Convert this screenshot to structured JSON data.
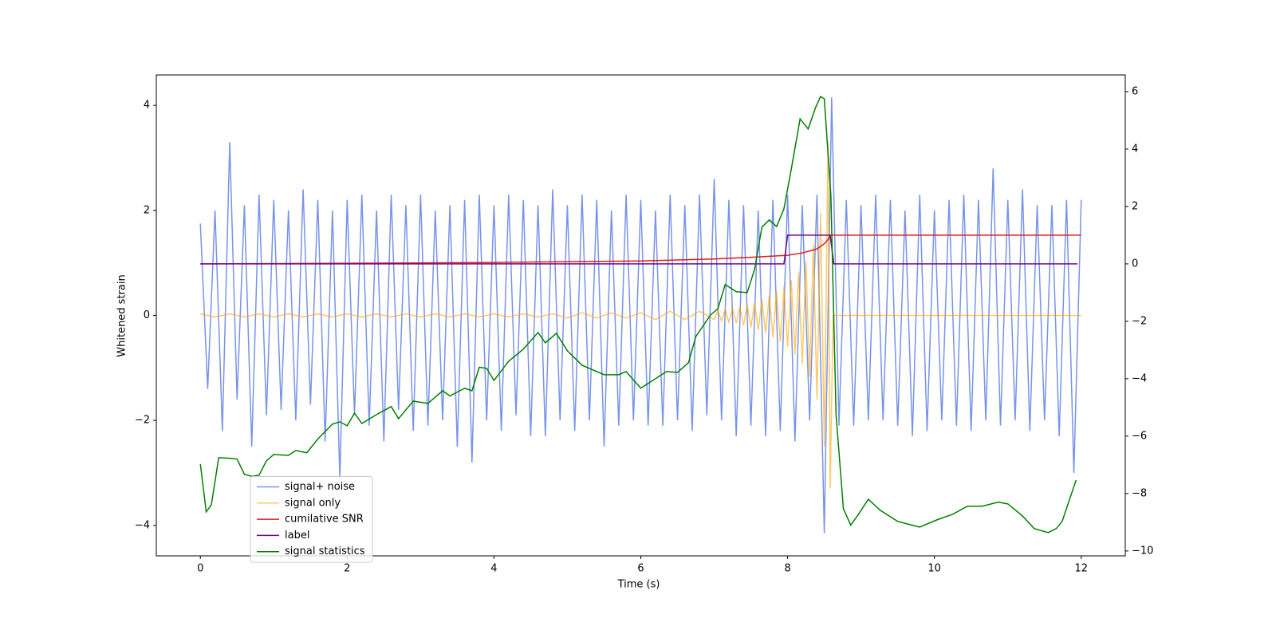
{
  "chart_data": {
    "type": "line",
    "xlabel": "Time (s)",
    "ylabel": "Whitened strain",
    "xlim": [
      -0.6,
      12.6
    ],
    "xticks": [
      0,
      2,
      4,
      6,
      8,
      10,
      12
    ],
    "ylim": [
      -4.58,
      4.58
    ],
    "yticks": [
      {
        "value": -4,
        "label": "−4"
      },
      {
        "value": -2,
        "label": "−2"
      },
      0,
      2,
      4
    ],
    "y2lim": [
      -10.17,
      6.58
    ],
    "y2ticks": [
      {
        "value": -10,
        "label": "−10"
      },
      {
        "value": -8,
        "label": "−8"
      },
      {
        "value": -6,
        "label": "−6"
      },
      {
        "value": -4,
        "label": "−4"
      },
      {
        "value": -2,
        "label": "−2"
      },
      0,
      2,
      4,
      6
    ],
    "legend": "lower left",
    "series": [
      {
        "name": "signal+ noise",
        "color": "#7893e8",
        "x": [
          0,
          0.1,
          0.2,
          0.3,
          0.4,
          0.5,
          0.6,
          0.7,
          0.8,
          0.9,
          1,
          1.1,
          1.2,
          1.3,
          1.4,
          1.5,
          1.6,
          1.7,
          1.8,
          1.9,
          2,
          2.1,
          2.2,
          2.3,
          2.4,
          2.5,
          2.6,
          2.7,
          2.8,
          2.9,
          3,
          3.1,
          3.2,
          3.3,
          3.4,
          3.5,
          3.6,
          3.7,
          3.8,
          3.9,
          4,
          4.1,
          4.2,
          4.3,
          4.4,
          4.5,
          4.6,
          4.7,
          4.8,
          4.9,
          5,
          5.1,
          5.2,
          5.3,
          5.4,
          5.5,
          5.6,
          5.7,
          5.8,
          5.9,
          6,
          6.1,
          6.2,
          6.3,
          6.4,
          6.5,
          6.6,
          6.7,
          6.8,
          6.9,
          7,
          7.1,
          7.2,
          7.3,
          7.4,
          7.5,
          7.6,
          7.7,
          7.8,
          7.9,
          8,
          8.1,
          8.2,
          8.3,
          8.4,
          8.5,
          8.6,
          8.7,
          8.8,
          8.9,
          9,
          9.1,
          9.2,
          9.3,
          9.4,
          9.5,
          9.6,
          9.7,
          9.8,
          9.9,
          10,
          10.1,
          10.2,
          10.3,
          10.4,
          10.5,
          10.6,
          10.7,
          10.8,
          10.9,
          11,
          11.1,
          11.2,
          11.3,
          11.4,
          11.5,
          11.6,
          11.7,
          11.8,
          11.9,
          12
        ],
        "values": [
          1.75,
          -1.4,
          2.0,
          -2.2,
          3.3,
          -1.6,
          2.1,
          -2.5,
          2.3,
          -1.9,
          2.2,
          -1.8,
          2.0,
          -2.0,
          2.4,
          -1.7,
          2.2,
          -2.4,
          2.0,
          -3.1,
          2.2,
          -1.9,
          2.3,
          -2.1,
          2.0,
          -2.4,
          2.3,
          -1.8,
          2.1,
          -2.2,
          2.3,
          -2.1,
          2.0,
          -2.0,
          2.1,
          -2.5,
          2.2,
          -2.8,
          2.3,
          -2.0,
          2.1,
          -2.2,
          2.3,
          -1.9,
          2.2,
          -2.3,
          2.1,
          -2.3,
          2.4,
          -2.0,
          2.1,
          -2.2,
          2.3,
          -2.0,
          2.2,
          -2.5,
          2.0,
          -2.1,
          2.3,
          -2.0,
          2.2,
          -2.1,
          2.0,
          -2.1,
          2.3,
          -2.0,
          2.1,
          -2.2,
          2.3,
          -1.9,
          2.6,
          -2.0,
          2.2,
          -2.3,
          2.1,
          -2.1,
          2.0,
          -2.3,
          2.2,
          -2.2,
          2.3,
          -2.4,
          2.1,
          -2.0,
          2.3,
          -4.15,
          4.15,
          -2.1,
          2.2,
          -2.1,
          2.1,
          -2.0,
          2.3,
          -2.0,
          2.2,
          -2.1,
          2.0,
          -2.3,
          2.3,
          -2.2,
          2.0,
          -2.0,
          2.2,
          -2.1,
          2.3,
          -2.2,
          2.2,
          -2.0,
          2.8,
          -2.1,
          2.2,
          -2.0,
          2.4,
          -2.2,
          2.1,
          -2.0,
          2.1,
          -2.3,
          2.2,
          -3.0,
          2.2
        ]
      },
      {
        "name": "signal only",
        "color": "#ffa500",
        "x": [
          0,
          0.2,
          0.4,
          0.6,
          0.8,
          1,
          1.2,
          1.4,
          1.6,
          1.8,
          2,
          2.2,
          2.4,
          2.6,
          2.8,
          3,
          3.2,
          3.4,
          3.6,
          3.8,
          4,
          4.2,
          4.4,
          4.6,
          4.8,
          5,
          5.2,
          5.4,
          5.6,
          5.8,
          6,
          6.2,
          6.4,
          6.6,
          6.8,
          7,
          7.05,
          7.1,
          7.15,
          7.2,
          7.25,
          7.3,
          7.35,
          7.4,
          7.45,
          7.5,
          7.55,
          7.6,
          7.65,
          7.7,
          7.75,
          7.8,
          7.85,
          7.9,
          7.95,
          8,
          8.05,
          8.1,
          8.15,
          8.2,
          8.25,
          8.3,
          8.35,
          8.4,
          8.45,
          8.5,
          8.55,
          8.58,
          8.62,
          12
        ],
        "values": [
          0.03,
          -0.03,
          0.03,
          -0.03,
          0.03,
          -0.03,
          0.03,
          -0.03,
          0.03,
          -0.03,
          0.03,
          -0.03,
          0.03,
          -0.03,
          0.03,
          -0.03,
          0.03,
          -0.03,
          0.03,
          -0.03,
          0.03,
          -0.03,
          0.03,
          -0.03,
          0.03,
          -0.05,
          0.05,
          -0.05,
          0.05,
          -0.05,
          0.05,
          -0.08,
          0.08,
          -0.08,
          0.08,
          -0.08,
          0.1,
          -0.11,
          0.12,
          -0.13,
          0.14,
          -0.15,
          0.17,
          -0.19,
          0.21,
          -0.23,
          0.25,
          -0.28,
          0.31,
          -0.34,
          0.38,
          -0.42,
          0.46,
          -0.5,
          0.55,
          -0.6,
          0.67,
          -0.74,
          0.82,
          -0.92,
          1.03,
          -1.17,
          1.35,
          -1.6,
          1.95,
          -2.5,
          3.3,
          -3.3,
          0,
          0
        ]
      },
      {
        "name": "cumilative SNR",
        "color": "#e31a1c",
        "axis": "y2",
        "x": [
          0,
          2,
          4,
          6,
          7,
          7.5,
          8,
          8.2,
          8.4,
          8.5,
          8.55,
          8.58,
          8.6,
          12
        ],
        "values": [
          0,
          0.02,
          0.05,
          0.1,
          0.17,
          0.23,
          0.3,
          0.38,
          0.52,
          0.7,
          0.85,
          1,
          1,
          1
        ]
      },
      {
        "name": "label",
        "color": "#6a0d83",
        "axis": "y2",
        "x": [
          0,
          7.95,
          8,
          8.58,
          8.63,
          11.95
        ],
        "values": [
          0,
          0,
          1,
          1,
          0,
          0
        ]
      },
      {
        "name": "signal statistics",
        "color": "#008000",
        "axis": "y2",
        "x": [
          0,
          0.08,
          0.15,
          0.25,
          0.4,
          0.5,
          0.6,
          0.7,
          0.8,
          0.9,
          1,
          1.2,
          1.3,
          1.45,
          1.6,
          1.8,
          1.9,
          2,
          2.1,
          2.2,
          2.4,
          2.6,
          2.7,
          2.9,
          3.1,
          3.3,
          3.4,
          3.6,
          3.7,
          3.8,
          3.9,
          4,
          4.2,
          4.4,
          4.6,
          4.7,
          4.85,
          5,
          5.2,
          5.5,
          5.7,
          5.8,
          6,
          6.2,
          6.35,
          6.5,
          6.65,
          6.75,
          6.95,
          7.05,
          7.15,
          7.3,
          7.45,
          7.55,
          7.65,
          7.75,
          7.85,
          7.95,
          8.05,
          8.17,
          8.28,
          8.38,
          8.45,
          8.5,
          8.59,
          8.66,
          8.76,
          8.86,
          8.95,
          9.1,
          9.26,
          9.5,
          9.8,
          10.03,
          10.25,
          10.45,
          10.65,
          10.87,
          11.0,
          11.2,
          11.36,
          11.55,
          11.66,
          11.74,
          11.93
        ],
        "values": [
          -6.97,
          -8.64,
          -8.39,
          -6.75,
          -6.77,
          -6.8,
          -7.33,
          -7.4,
          -7.36,
          -6.86,
          -6.64,
          -6.67,
          -6.5,
          -6.58,
          -6.1,
          -5.58,
          -5.5,
          -5.64,
          -5.2,
          -5.56,
          -5.25,
          -4.97,
          -5.39,
          -4.78,
          -4.86,
          -4.42,
          -4.6,
          -4.33,
          -4.42,
          -3.6,
          -3.64,
          -4.06,
          -3.39,
          -2.97,
          -2.39,
          -2.75,
          -2.42,
          -3.03,
          -3.53,
          -3.86,
          -3.86,
          -3.75,
          -4.33,
          -4.0,
          -3.75,
          -3.78,
          -3.44,
          -2.53,
          -1.78,
          -1.56,
          -0.72,
          -0.97,
          -1.0,
          -0.19,
          1.28,
          1.53,
          1.3,
          1.92,
          3.3,
          5.05,
          4.7,
          5.44,
          5.83,
          5.75,
          2.36,
          -5.25,
          -8.53,
          -9.1,
          -8.78,
          -8.2,
          -8.58,
          -8.97,
          -9.17,
          -8.92,
          -8.72,
          -8.44,
          -8.44,
          -8.3,
          -8.36,
          -8.78,
          -9.22,
          -9.36,
          -9.22,
          -8.97,
          -7.53
        ]
      }
    ]
  }
}
